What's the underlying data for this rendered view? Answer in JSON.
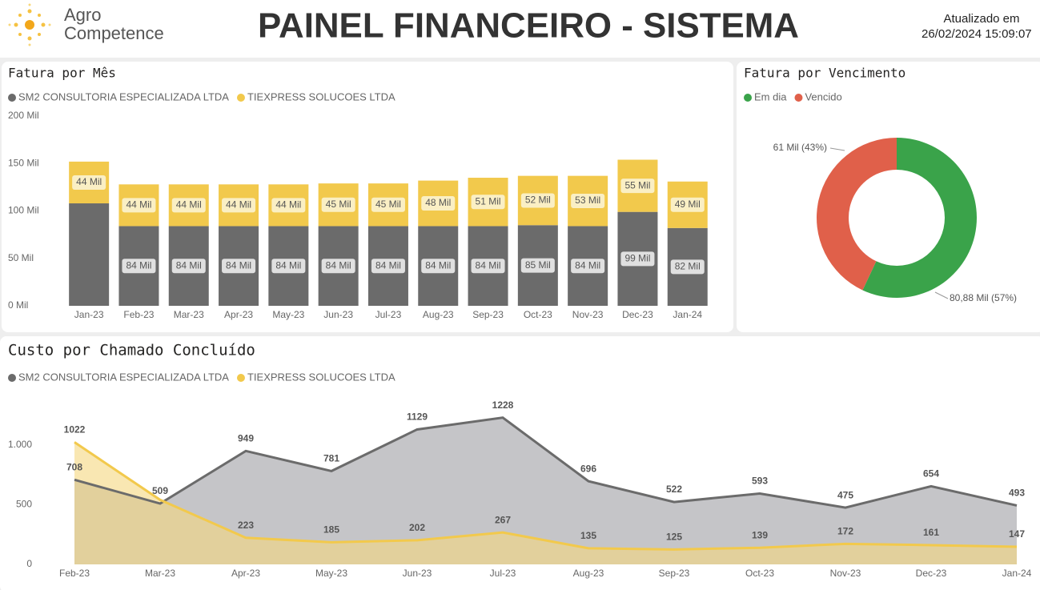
{
  "header": {
    "logo_line1": "Agro",
    "logo_line2": "Competence",
    "title": "PAINEL FINANCEIRO - SISTEMA",
    "updated_label": "Atualizado em",
    "updated_value": "26/02/2024 15:09:07"
  },
  "chart_data": [
    {
      "type": "stacked_bar",
      "title": "Fatura por Mês",
      "categories": [
        "Jan-23",
        "Feb-23",
        "Mar-23",
        "Apr-23",
        "May-23",
        "Jun-23",
        "Jul-23",
        "Aug-23",
        "Sep-23",
        "Oct-23",
        "Nov-23",
        "Dec-23",
        "Jan-24"
      ],
      "series": [
        {
          "name": "SM2 CONSULTORIA ESPECIALIZADA LTDA",
          "color": "#6b6b6b",
          "values": [
            108,
            84,
            84,
            84,
            84,
            84,
            84,
            84,
            84,
            85,
            84,
            99,
            82
          ],
          "value_labels": [
            null,
            "84 Mil",
            "84 Mil",
            "84 Mil",
            "84 Mil",
            "84 Mil",
            "84 Mil",
            "84 Mil",
            "84 Mil",
            "85 Mil",
            "84 Mil",
            "99 Mil",
            "82 Mil"
          ]
        },
        {
          "name": "TIEXPRESS SOLUCOES LTDA",
          "color": "#f2c94c",
          "values": [
            44,
            44,
            44,
            44,
            44,
            45,
            45,
            48,
            51,
            52,
            53,
            55,
            49
          ],
          "value_labels": [
            "44 Mil",
            "44 Mil",
            "44 Mil",
            "44 Mil",
            "44 Mil",
            "45 Mil",
            "45 Mil",
            "48 Mil",
            "51 Mil",
            "52 Mil",
            "53 Mil",
            "55 Mil",
            "49 Mil"
          ]
        }
      ],
      "ylim": [
        0,
        200
      ],
      "yticks": [
        {
          "value": 0,
          "label": "0 Mil"
        },
        {
          "value": 50,
          "label": "50 Mil"
        },
        {
          "value": 100,
          "label": "100 Mil"
        },
        {
          "value": 150,
          "label": "150 Mil"
        },
        {
          "value": 200,
          "label": "200 Mil"
        }
      ]
    },
    {
      "type": "donut",
      "title": "Fatura por Vencimento",
      "categories": [
        "Em dia",
        "Vencido"
      ],
      "colors": [
        "#3aa34a",
        "#e0604a"
      ],
      "values": [
        80.88,
        61
      ],
      "value_labels": [
        "80,88 Mil (57%)",
        "61 Mil (43%)"
      ]
    },
    {
      "type": "area",
      "title": "Custo por Chamado Concluído",
      "categories": [
        "Feb-23",
        "Mar-23",
        "Apr-23",
        "May-23",
        "Jun-23",
        "Jul-23",
        "Aug-23",
        "Sep-23",
        "Oct-23",
        "Nov-23",
        "Dec-23",
        "Jan-24"
      ],
      "series": [
        {
          "name": "SM2 CONSULTORIA ESPECIALIZADA LTDA",
          "color": "#6b6b6b",
          "values": [
            708,
            509,
            949,
            781,
            1129,
            1228,
            696,
            522,
            593,
            475,
            654,
            493
          ]
        },
        {
          "name": "TIEXPRESS SOLUCOES LTDA",
          "color": "#f2c94c",
          "values": [
            1022,
            540,
            223,
            185,
            202,
            267,
            135,
            125,
            139,
            172,
            161,
            147
          ],
          "value_labels": [
            "1022",
            null,
            "223",
            "185",
            "202",
            "267",
            "135",
            "125",
            "139",
            "172",
            "161",
            "147"
          ]
        }
      ],
      "ylim": [
        0,
        1400
      ],
      "yticks": [
        0,
        500,
        {
          "value": 1000,
          "label": "1.000"
        }
      ]
    }
  ]
}
